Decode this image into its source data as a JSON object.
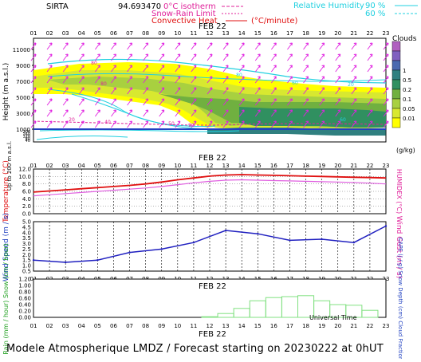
{
  "header": {
    "station": "SIRTA",
    "coord": "94.693470",
    "legend_isotherm": "0°C isotherm",
    "legend_snowrain": "Snow-Rain Limit",
    "legend_convective": "Convective Heat",
    "legend_convective_unit": "(°C/minute)",
    "legend_rh": "Relative Humidity",
    "rh_90": "90 %",
    "rh_60": "60 %"
  },
  "time_axis": {
    "hours": [
      "01",
      "02",
      "03",
      "04",
      "05",
      "06",
      "07",
      "08",
      "09",
      "10",
      "11",
      "12",
      "13",
      "14",
      "15",
      "16",
      "17",
      "18",
      "19",
      "20",
      "21",
      "22",
      "23"
    ],
    "date_label": "FEB 22",
    "ut_label": "Universal Time"
  },
  "colors": {
    "cloud_levels": [
      "#ffff00",
      "#d8e830",
      "#a8d040",
      "#70b040",
      "#309060",
      "#308080",
      "#4a6ab0",
      "#8060c0",
      "#b060c0"
    ],
    "temperature": "#e01010",
    "humidex": "#e060e0",
    "wind": "#2020c0",
    "rain": "#80e080",
    "wind_arrow": "#e020e0"
  },
  "cloud_panel": {
    "y_title": "Height (m a.s.l.)",
    "y_sub": "Up to 200 m a.s.l.",
    "upper_ticks": [
      "11000",
      "9000",
      "7000",
      "5000",
      "3000",
      "1000"
    ],
    "lower_ticks": [
      "200",
      "180",
      "160",
      "140",
      "120",
      "100",
      "80",
      "60",
      "40",
      "20"
    ],
    "colorbar_title": "Clouds",
    "colorbar_ticks": [
      "1",
      "0.5",
      "0.2",
      "0.1",
      "0.05",
      "0.01"
    ],
    "colorbar_unit": "(g/kg)",
    "isotherm_labels": [
      "80",
      "80",
      "20",
      "40",
      "50",
      "90",
      "20",
      "60",
      "80",
      "60"
    ]
  },
  "chart_data": [
    {
      "type": "line",
      "title": "",
      "ylabel": "Temperature (°C)",
      "y2label": "HUMIDEX (°C)",
      "ylim": [
        0,
        12
      ],
      "yticks": [
        "12.0",
        "10.0",
        "8.0",
        "6.0",
        "4.0",
        "2.0",
        "0.0"
      ],
      "x": [
        "01",
        "02",
        "03",
        "04",
        "05",
        "06",
        "07",
        "08",
        "09",
        "10",
        "11",
        "12",
        "13",
        "14",
        "15",
        "16",
        "17",
        "18",
        "19",
        "20",
        "21",
        "22",
        "23"
      ],
      "series": [
        {
          "name": "Temperature",
          "values": [
            5.8,
            6.1,
            6.4,
            6.7,
            7.0,
            7.3,
            7.6,
            8.0,
            8.5,
            9.1,
            9.6,
            10.1,
            10.4,
            10.5,
            10.4,
            10.3,
            10.2,
            10.1,
            10.0,
            9.9,
            9.8,
            9.7,
            9.6
          ]
        },
        {
          "name": "Humidex",
          "values": [
            4.8,
            5.1,
            5.4,
            5.7,
            6.0,
            6.3,
            6.6,
            6.9,
            7.3,
            7.8,
            8.3,
            8.7,
            9.0,
            9.1,
            9.0,
            8.9,
            8.8,
            8.7,
            8.6,
            8.5,
            8.4,
            8.2,
            8.0
          ]
        }
      ]
    },
    {
      "type": "line",
      "title": "",
      "ylabel": "Wind Speed (m / s)",
      "y2label": "Wind Gust (m / s)",
      "ylim": [
        0.5,
        5.0
      ],
      "yticks": [
        "5.0",
        "4.5",
        "4.0",
        "3.5",
        "3.0",
        "2.5",
        "2.0",
        "1.5",
        "1.0",
        "0.5"
      ],
      "x": [
        "01",
        "03",
        "05",
        "07",
        "09",
        "11",
        "13",
        "15",
        "17",
        "19",
        "21",
        "23"
      ],
      "series": [
        {
          "name": "Wind Speed",
          "values": [
            1.5,
            1.3,
            1.5,
            2.2,
            2.5,
            3.1,
            4.2,
            3.9,
            3.3,
            3.4,
            3.1,
            4.6
          ]
        }
      ]
    },
    {
      "type": "bar",
      "title": "",
      "ylabel": "Rain (mm / hour) Snow (cm / hour)",
      "y2label": "CAPE (J / g) Snow Depth (cm) Cloud Fraction",
      "ylim": [
        0,
        1.2
      ],
      "yticks": [
        "1.20",
        "1.00",
        "0.80",
        "0.60",
        "0.40",
        "0.20",
        "0.00"
      ],
      "categories": [
        "12",
        "13",
        "14",
        "15",
        "16",
        "17",
        "18",
        "19",
        "20",
        "21",
        "22"
      ],
      "values": [
        0.02,
        0.12,
        0.28,
        0.52,
        0.62,
        0.65,
        0.68,
        0.52,
        0.4,
        0.38,
        0.22
      ],
      "xlabel": "Universal Time"
    }
  ],
  "footer": {
    "text": "Modele Atmospherique LMDZ / Forecast starting on 20230222 at 0hUT"
  }
}
